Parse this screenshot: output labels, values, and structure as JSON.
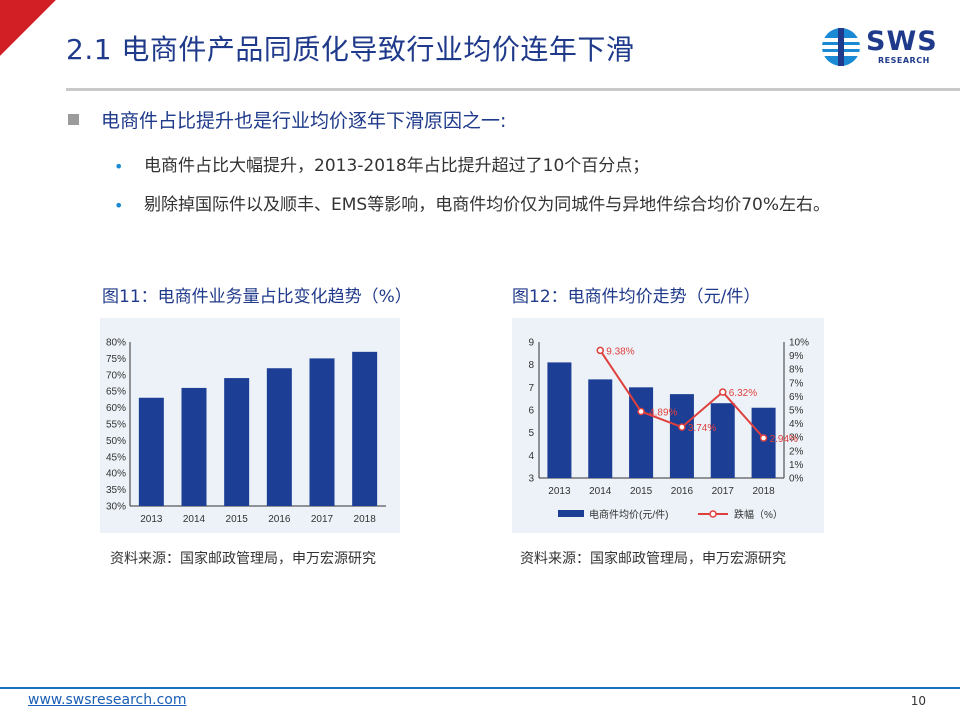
{
  "header": {
    "title": "2.1 电商件产品同质化导致行业均价连年下滑",
    "logo_text": "SWS",
    "logo_subtext": "RESEARCH"
  },
  "content": {
    "main_bullet": "电商件占比提升也是行业均价逐年下滑原因之一:",
    "sub_bullets": [
      "电商件占比大幅提升，2013-2018年占比提升超过了10个百分点；",
      "剔除掉国际件以及顺丰、EMS等影响，电商件均价仅为同城件与异地件综合均价70%左右。"
    ]
  },
  "figures": [
    {
      "title": "图11：电商件业务量占比变化趋势（%）",
      "source": "资料来源：国家邮政管理局，申万宏源研究"
    },
    {
      "title": "图12：电商件均价走势（元/件）",
      "source": "资料来源：国家邮政管理局，申万宏源研究"
    }
  ],
  "footer": {
    "url": "www.swsresearch.com",
    "page": "10"
  },
  "colors": {
    "accent_red": "#d21f26",
    "navy": "#1f3a8a",
    "bar": "#1c3e95",
    "line": "#e0403d",
    "chart_bg": "#ecf2f7"
  },
  "chart_data": [
    {
      "type": "bar",
      "title": "",
      "categories": [
        "2013",
        "2014",
        "2015",
        "2016",
        "2017",
        "2018"
      ],
      "values": [
        63,
        66,
        69,
        72,
        75,
        77
      ],
      "ylim": [
        30,
        80
      ],
      "yticks": [
        "30%",
        "35%",
        "40%",
        "45%",
        "50%",
        "55%",
        "60%",
        "65%",
        "70%",
        "75%",
        "80%"
      ],
      "grid": false,
      "legend": "none"
    },
    {
      "type": "bar",
      "title": "",
      "categories": [
        "2013",
        "2014",
        "2015",
        "2016",
        "2017",
        "2018"
      ],
      "series": [
        {
          "name": "电商件均价(元/件)",
          "type": "bar",
          "axis": "left",
          "values": [
            8.1,
            7.35,
            7.0,
            6.7,
            6.3,
            6.1
          ]
        },
        {
          "name": "跌幅（%）",
          "type": "line",
          "axis": "right",
          "values": [
            null,
            9.38,
            4.89,
            3.74,
            6.32,
            2.94
          ],
          "labels": [
            "",
            "9.38%",
            "4.89%",
            "3.74%",
            "6.32%",
            "2.94%"
          ]
        }
      ],
      "ylim_left": [
        3,
        9
      ],
      "ylim_right": [
        0,
        10
      ],
      "yticks_left": [
        "3",
        "4",
        "5",
        "6",
        "7",
        "8",
        "9"
      ],
      "yticks_right": [
        "0%",
        "1%",
        "2%",
        "3%",
        "4%",
        "5%",
        "6%",
        "7%",
        "8%",
        "9%",
        "10%"
      ],
      "grid": false,
      "legend": "bottom"
    }
  ]
}
